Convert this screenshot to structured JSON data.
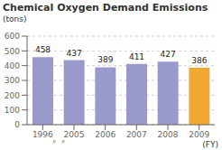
{
  "chart_data": {
    "type": "bar",
    "title": "Chemical Oxygen Demand Emissions",
    "ylabel": "(tons)",
    "xlabel": "(FY)",
    "categories": [
      "1996",
      "2005",
      "2006",
      "2007",
      "2008",
      "2009"
    ],
    "values": [
      458,
      437,
      389,
      411,
      427,
      386
    ],
    "colors": [
      "#9999cc",
      "#9999cc",
      "#9999cc",
      "#9999cc",
      "#9999cc",
      "#f0a830"
    ],
    "ylim": [
      0,
      600
    ],
    "yticks": [
      0,
      100,
      200,
      300,
      400,
      500,
      600
    ],
    "grid": true,
    "data_labels": true,
    "annotations": [
      "〃",
      "〃"
    ]
  }
}
